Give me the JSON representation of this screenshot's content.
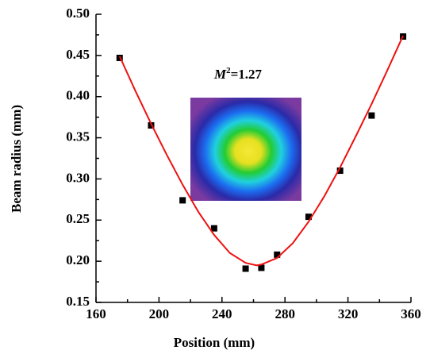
{
  "chart_data": {
    "type": "scatter",
    "xlabel": "Position (mm)",
    "ylabel": "Beam radius (mm)",
    "annotation": {
      "base": "M",
      "exponent": "2",
      "rest": "=1.27"
    },
    "series": [
      {
        "color": "#000000",
        "marker": "square",
        "x": [
          175,
          195,
          215,
          235,
          255,
          265,
          275,
          295,
          315,
          335,
          355
        ],
        "values": [
          0.447,
          0.365,
          0.274,
          0.24,
          0.191,
          0.192,
          0.208,
          0.254,
          0.31,
          0.377,
          0.473
        ]
      },
      {
        "color": "#ee1111",
        "line": true,
        "x": [
          175,
          185,
          195,
          205,
          215,
          225,
          235,
          245,
          255,
          262,
          265,
          275,
          285,
          295,
          305,
          315,
          325,
          335,
          345,
          355
        ],
        "values": [
          0.449,
          0.407,
          0.367,
          0.329,
          0.293,
          0.26,
          0.232,
          0.21,
          0.198,
          0.195,
          0.196,
          0.204,
          0.222,
          0.248,
          0.279,
          0.314,
          0.352,
          0.391,
          0.432,
          0.474
        ]
      }
    ],
    "xlim": [
      160,
      360
    ],
    "xticks": [
      160,
      200,
      240,
      280,
      320,
      360
    ],
    "xminorticks": [
      180,
      220,
      260,
      300,
      340
    ],
    "ylim": [
      0.15,
      0.5
    ],
    "yticks": [
      0.15,
      {
        "value": 0.2,
        "label": "0.20"
      },
      0.25,
      {
        "value": 0.3,
        "label": "0.30"
      },
      0.35,
      {
        "value": 0.4,
        "label": "0.40"
      },
      0.45,
      {
        "value": 0.5,
        "label": "0.50"
      }
    ],
    "yminorticks": [
      0.175,
      0.225,
      0.275,
      0.325,
      0.375,
      0.425,
      0.475
    ]
  }
}
